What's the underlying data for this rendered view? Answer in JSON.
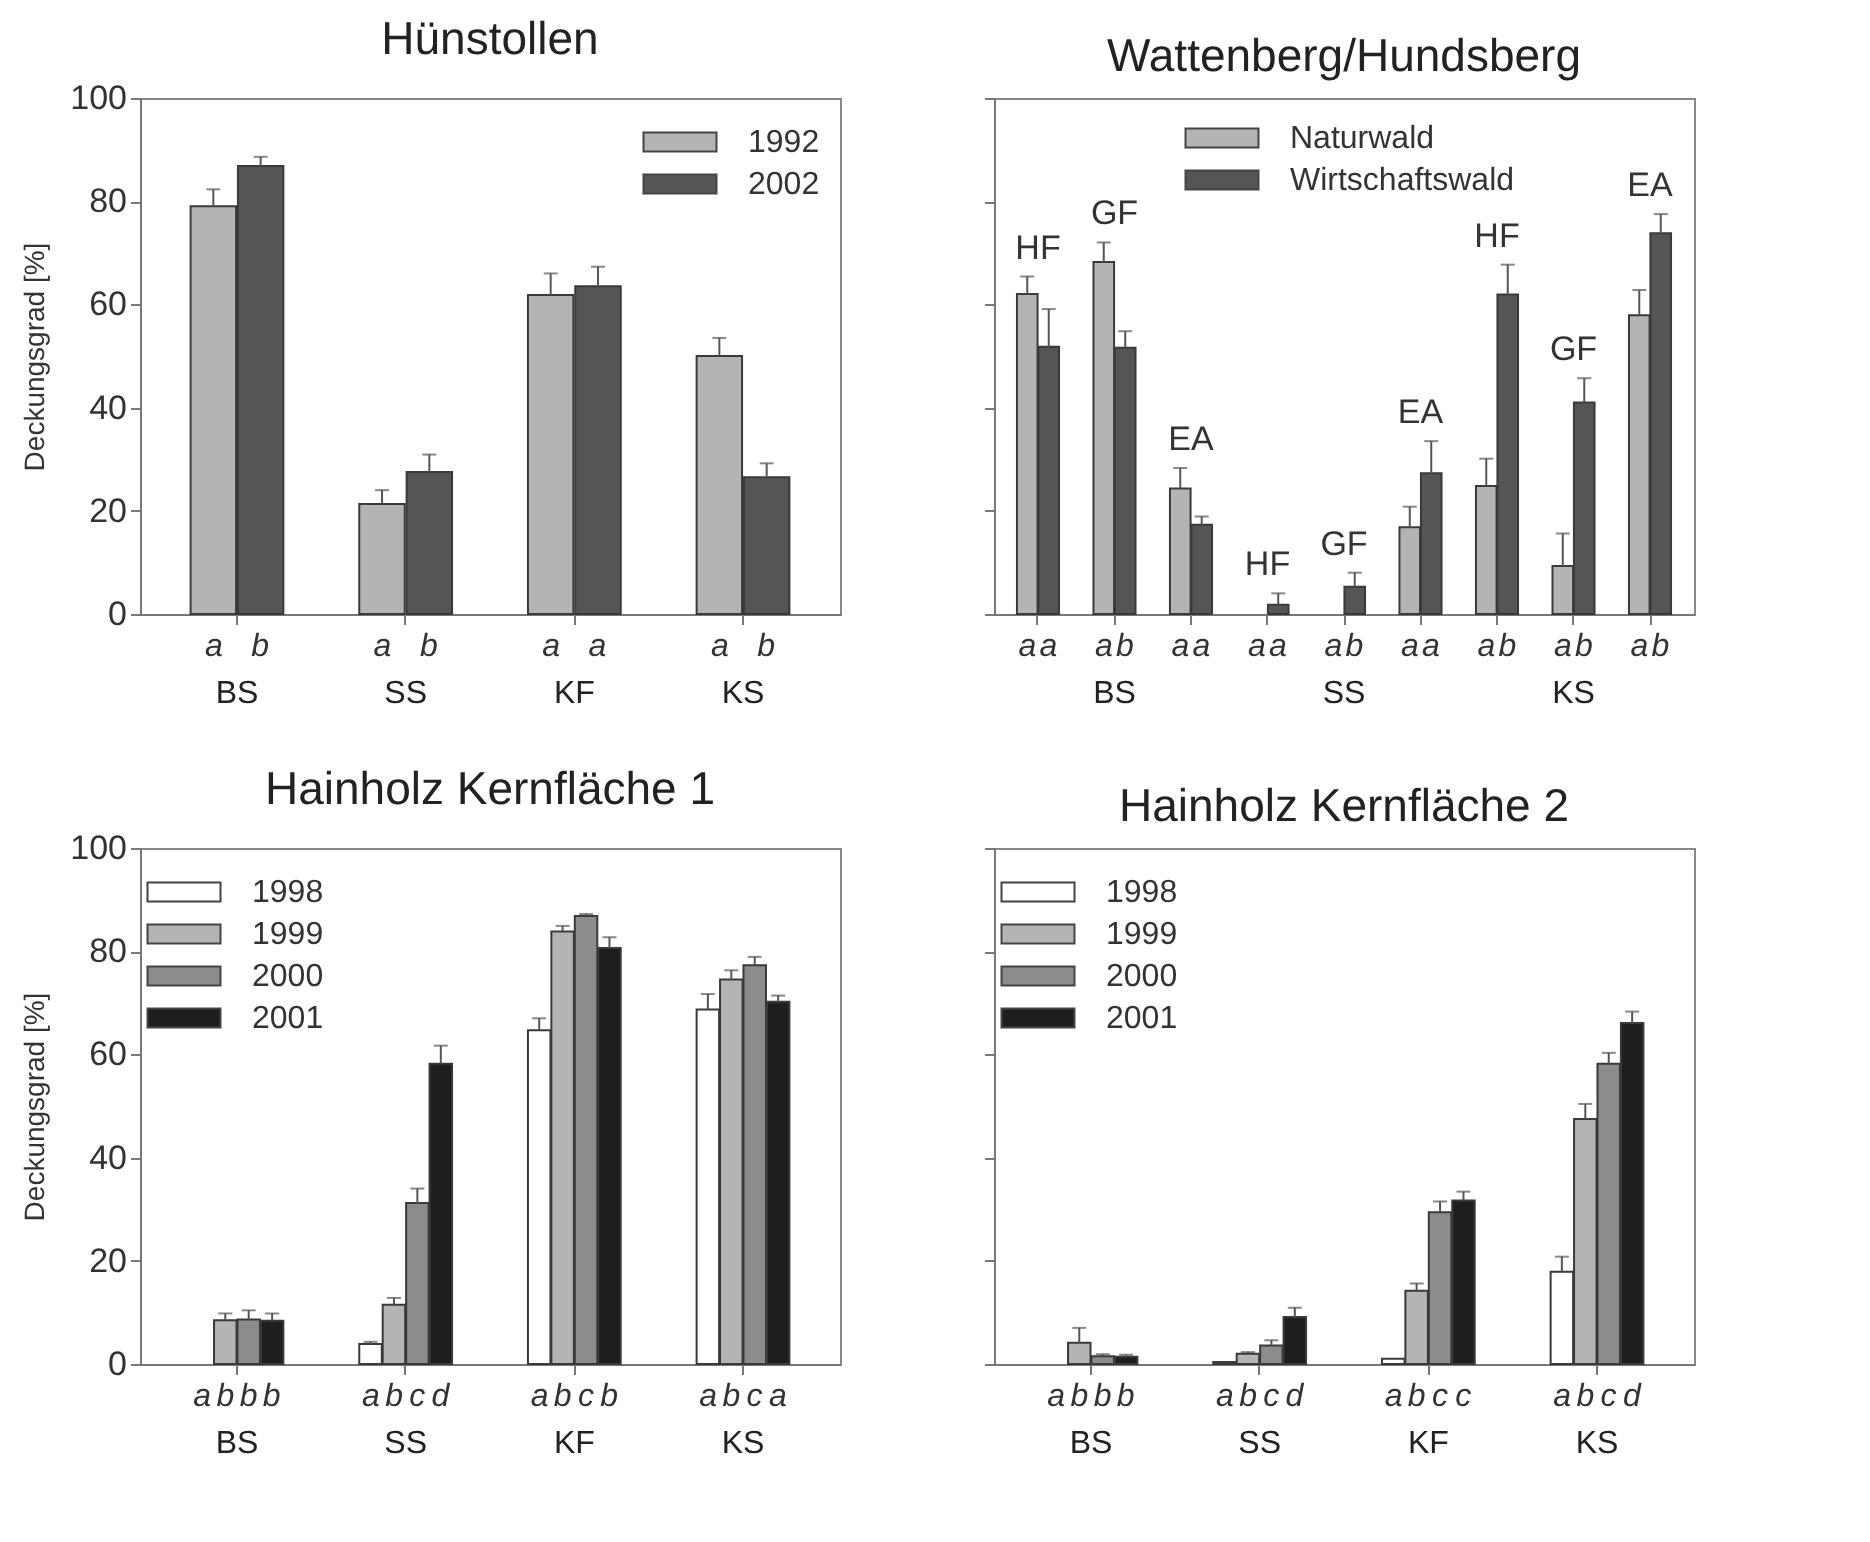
{
  "chart_data": [
    {
      "type": "bar",
      "title": "Hünstollen",
      "ylabel": "Deckungsgrad [%]",
      "categories": [
        "BS",
        "SS",
        "KF",
        "KS"
      ],
      "ylim": [
        0,
        100
      ],
      "yticks": [
        0,
        20,
        40,
        60,
        80,
        100
      ],
      "legend": "top right",
      "series": [
        {
          "name": "1992",
          "color": "#b4b4b4",
          "values": [
            79,
            21.3,
            61.8,
            50
          ],
          "errors": [
            3.3,
            2.7,
            4.2,
            3.5
          ],
          "value_labels": [
            "a",
            "a",
            "a",
            "a"
          ]
        },
        {
          "name": "2002",
          "color": "#555555",
          "values": [
            86.8,
            27.5,
            63.5,
            26.5
          ],
          "errors": [
            1.8,
            3.4,
            3.8,
            2.7
          ],
          "value_labels": [
            "b",
            "b",
            "a",
            "b"
          ]
        }
      ]
    },
    {
      "type": "bar",
      "title": "Wattenberg/Hundsberg",
      "categories": [
        null,
        "BS",
        null,
        null,
        "SS",
        null,
        null,
        "KS",
        null
      ],
      "annotations": [
        {
          "text": "HF",
          "y": 65.4
        },
        {
          "text": "GF",
          "y": 72
        },
        {
          "text": "EA",
          "y": 28.3
        },
        {
          "text": "HF",
          "y": 4
        },
        {
          "text": "GF",
          "y": 8
        },
        {
          "text": "EA",
          "y": 33.5
        },
        {
          "text": "HF",
          "y": 67.7
        },
        {
          "text": "GF",
          "y": 45.7
        },
        {
          "text": "EA",
          "y": 77.5
        }
      ],
      "ylim": [
        0,
        100
      ],
      "yticks": [
        0,
        20,
        40,
        60,
        80,
        100
      ],
      "tick_labels": "x",
      "legend": "top",
      "series": [
        {
          "name": "Naturwald",
          "color": "#b4b4b4",
          "values": [
            62,
            68.2,
            24.3,
            0,
            0,
            16.8,
            24.8,
            9.3,
            57.9
          ],
          "errors": [
            3.4,
            3.8,
            4,
            null,
            null,
            4,
            5.3,
            6.3,
            4.9
          ],
          "value_labels": [
            "a",
            "a",
            "a",
            "a",
            "a",
            "a",
            "a",
            "a",
            "a"
          ]
        },
        {
          "name": "Wirtschaftswald",
          "color": "#555555",
          "values": [
            51.8,
            51.6,
            17.3,
            1.8,
            5.3,
            27.3,
            61.9,
            41,
            73.8
          ],
          "errors": [
            7.3,
            3.2,
            1.6,
            2.2,
            2.7,
            6.2,
            5.8,
            4.7,
            3.7
          ],
          "value_labels": [
            "a",
            "b",
            "a",
            "a",
            "b",
            "a",
            "b",
            "b",
            "b"
          ]
        }
      ]
    },
    {
      "type": "bar",
      "title": "Hainholz Kernfläche 1",
      "ylabel": "Deckungsgrad [%]",
      "categories": [
        "BS",
        "SS",
        "KF",
        "KS"
      ],
      "ylim": [
        0,
        100
      ],
      "yticks": [
        0,
        20,
        40,
        60,
        80,
        100
      ],
      "legend": "top left",
      "series": [
        {
          "name": "1998",
          "color": "#ffffff",
          "values": [
            0,
            3.9,
            64.7,
            68.7
          ],
          "errors": [
            null,
            0.4,
            2.3,
            3
          ],
          "value_labels": [
            "a",
            "a",
            "a",
            "a"
          ]
        },
        {
          "name": "1999",
          "color": "#b4b4b4",
          "values": [
            8.5,
            11.5,
            83.8,
            74.5
          ],
          "errors": [
            1.3,
            1.3,
            1.1,
            1.8
          ],
          "value_labels": [
            "b",
            "b",
            "b",
            "b"
          ]
        },
        {
          "name": "2000",
          "color": "#8c8c8c",
          "values": [
            8.6,
            31.2,
            86.8,
            77.3
          ],
          "errors": [
            1.8,
            2.8,
            0.4,
            1.6
          ],
          "value_labels": [
            "b",
            "c",
            "c",
            "c"
          ]
        },
        {
          "name": "2001",
          "color": "#1e1e1e",
          "values": [
            8.4,
            58.2,
            80.6,
            70.2
          ],
          "errors": [
            1.4,
            3.5,
            2.1,
            1.2
          ],
          "value_labels": [
            "b",
            "d",
            "b",
            "a"
          ]
        }
      ]
    },
    {
      "type": "bar",
      "title": "Hainholz Kernfläche 2",
      "categories": [
        "BS",
        "SS",
        "KF",
        "KS"
      ],
      "ylim": [
        0,
        100
      ],
      "yticks": [
        0,
        20,
        40,
        60,
        80,
        100
      ],
      "tick_labels": "x",
      "legend": "top left",
      "series": [
        {
          "name": "1998",
          "color": "#ffffff",
          "values": [
            0,
            0.4,
            1,
            17.9
          ],
          "errors": [
            null,
            null,
            null,
            2.9
          ],
          "value_labels": [
            "a",
            "a",
            "a",
            "a"
          ]
        },
        {
          "name": "1999",
          "color": "#b4b4b4",
          "values": [
            4.1,
            2,
            14.2,
            47.5
          ],
          "errors": [
            2.9,
            0.3,
            1.4,
            2.9
          ],
          "value_labels": [
            "b",
            "b",
            "b",
            "b"
          ]
        },
        {
          "name": "2000",
          "color": "#8c8c8c",
          "values": [
            1.5,
            3.6,
            29.4,
            58.2
          ],
          "errors": [
            0.4,
            1,
            2.1,
            2.1
          ],
          "value_labels": [
            "b",
            "c",
            "c",
            "c"
          ]
        },
        {
          "name": "2001",
          "color": "#1e1e1e",
          "values": [
            1.4,
            9.1,
            31.7,
            66.1
          ],
          "errors": [
            0.4,
            1.8,
            1.7,
            2.2
          ],
          "value_labels": [
            "b",
            "d",
            "c",
            "d"
          ]
        }
      ]
    }
  ]
}
